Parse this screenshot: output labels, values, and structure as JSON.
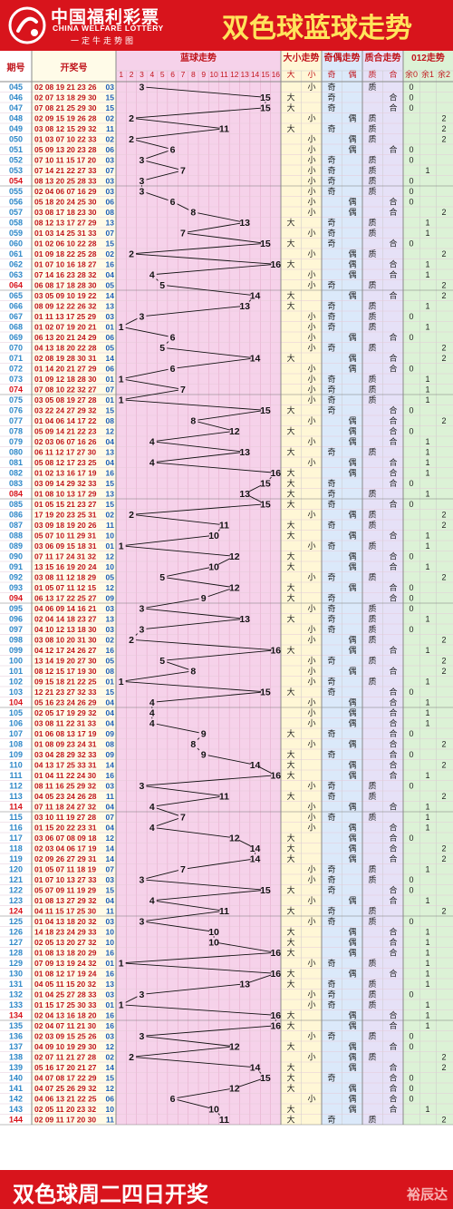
{
  "brand": {
    "name_cn": "中国福利彩票",
    "name_en": "CHINA WELFARE LOTTERY",
    "slogan": "一定牛走势图"
  },
  "title": "双色球蓝球走势",
  "headers": {
    "period": "期号",
    "draw": "开奖号",
    "blue_trend": "蓝球走势",
    "size_trend": "大小走势",
    "parity_trend": "奇偶走势",
    "prime_trend": "质合走势",
    "mod3_trend": "012走势",
    "big": "大",
    "small": "小",
    "odd": "奇",
    "even": "偶",
    "prime": "质",
    "composite": "合",
    "mod0": "余0",
    "mod1": "余1",
    "mod2": "余2",
    "numbers": [
      "1",
      "2",
      "3",
      "4",
      "5",
      "6",
      "7",
      "8",
      "9",
      "10",
      "11",
      "12",
      "13",
      "14",
      "15",
      "16"
    ]
  },
  "rows": [
    {
      "p": "045",
      "r": "02 08 19 21 23 26",
      "b": 3
    },
    {
      "p": "046",
      "r": "02 07 13 18 29 30",
      "b": 15
    },
    {
      "p": "047",
      "r": "07 08 21 25 29 30",
      "b": 15
    },
    {
      "p": "048",
      "r": "02 09 15 19 26 28",
      "b": 2
    },
    {
      "p": "049",
      "r": "03 08 12 15 29 32",
      "b": 11
    },
    {
      "p": "050",
      "r": "01 03 07 10 22 33",
      "b": 2
    },
    {
      "p": "051",
      "r": "05 09 13 20 23 28",
      "b": 6
    },
    {
      "p": "052",
      "r": "07 10 11 15 17 20",
      "b": 3
    },
    {
      "p": "053",
      "r": "07 14 21 22 27 33",
      "b": 7
    },
    {
      "p": "054",
      "r": "08 13 20 25 28 33",
      "b": 3
    },
    {
      "p": "055",
      "r": "02 04 06 07 16 29",
      "b": 3
    },
    {
      "p": "056",
      "r": "05 18 20 24 25 30",
      "b": 6
    },
    {
      "p": "057",
      "r": "03 08 17 18 23 30",
      "b": 8
    },
    {
      "p": "058",
      "r": "08 12 13 17 27 29",
      "b": 13
    },
    {
      "p": "059",
      "r": "01 03 14 25 31 33",
      "b": 7
    },
    {
      "p": "060",
      "r": "01 02 06 10 22 28",
      "b": 15
    },
    {
      "p": "061",
      "r": "01 09 18 22 25 28",
      "b": 2
    },
    {
      "p": "062",
      "r": "01 07 10 16 18 27",
      "b": 16
    },
    {
      "p": "063",
      "r": "07 14 16 23 28 32",
      "b": 4
    },
    {
      "p": "064",
      "r": "06 08 17 18 28 30",
      "b": 5
    },
    {
      "p": "065",
      "r": "03 05 09 10 19 22",
      "b": 14
    },
    {
      "p": "066",
      "r": "08 09 12 22 26 32",
      "b": 13
    },
    {
      "p": "067",
      "r": "01 11 13 17 25 29",
      "b": 3
    },
    {
      "p": "068",
      "r": "01 02 07 19 20 21",
      "b": 1
    },
    {
      "p": "069",
      "r": "06 13 20 21 24 29",
      "b": 6
    },
    {
      "p": "070",
      "r": "04 13 18 20 22 28",
      "b": 5
    },
    {
      "p": "071",
      "r": "02 08 19 28 30 31",
      "b": 14
    },
    {
      "p": "072",
      "r": "01 14 20 21 27 29",
      "b": 6
    },
    {
      "p": "073",
      "r": "01 09 12 18 28 30",
      "b": 1
    },
    {
      "p": "074",
      "r": "07 08 10 22 32 27",
      "b": 7
    },
    {
      "p": "075",
      "r": "03 05 08 19 27 28",
      "b": 1
    },
    {
      "p": "076",
      "r": "03 22 24 27 29 32",
      "b": 15
    },
    {
      "p": "077",
      "r": "01 04 06 14 17 22",
      "b": 8
    },
    {
      "p": "078",
      "r": "05 09 14 21 22 23",
      "b": 12
    },
    {
      "p": "079",
      "r": "02 03 06 07 16 26",
      "b": 4
    },
    {
      "p": "080",
      "r": "06 11 12 17 27 30",
      "b": 13
    },
    {
      "p": "081",
      "r": "05 08 12 17 23 25",
      "b": 4
    },
    {
      "p": "082",
      "r": "01 02 13 16 17 19",
      "b": 16
    },
    {
      "p": "083",
      "r": "03 09 14 29 32 33",
      "b": 15
    },
    {
      "p": "084",
      "r": "01 08 10 13 17 29",
      "b": 13
    },
    {
      "p": "085",
      "r": "01 05 15 21 23 27",
      "b": 15
    },
    {
      "p": "086",
      "r": "17 19 20 23 25 31",
      "b": 2
    },
    {
      "p": "087",
      "r": "03 09 18 19 20 26",
      "b": 11
    },
    {
      "p": "088",
      "r": "05 07 10 11 29 31",
      "b": 10
    },
    {
      "p": "089",
      "r": "03 06 09 15 18 31",
      "b": 1
    },
    {
      "p": "090",
      "r": "07 11 17 24 31 32",
      "b": 12
    },
    {
      "p": "091",
      "r": "13 15 16 19 20 24",
      "b": 10
    },
    {
      "p": "092",
      "r": "03 08 11 12 18 29",
      "b": 5
    },
    {
      "p": "093",
      "r": "01 05 07 11 12 15",
      "b": 12
    },
    {
      "p": "094",
      "r": "06 13 17 22 25 27",
      "b": 9
    },
    {
      "p": "095",
      "r": "04 06 09 14 16 21",
      "b": 3
    },
    {
      "p": "096",
      "r": "02 04 14 18 23 27",
      "b": 13
    },
    {
      "p": "097",
      "r": "04 10 12 13 18 30",
      "b": 3
    },
    {
      "p": "098",
      "r": "03 08 10 20 31 30",
      "b": 2
    },
    {
      "p": "099",
      "r": "04 12 17 24 26 27",
      "b": 16
    },
    {
      "p": "100",
      "r": "13 14 19 20 27 30",
      "b": 5
    },
    {
      "p": "101",
      "r": "08 12 15 17 19 30",
      "b": 8
    },
    {
      "p": "102",
      "r": "09 15 18 21 22 25",
      "b": 1
    },
    {
      "p": "103",
      "r": "12 21 23 27 32 33",
      "b": 15
    },
    {
      "p": "104",
      "r": "05 16 23 24 26 29",
      "b": 4
    },
    {
      "p": "105",
      "r": "02 05 17 19 29 32",
      "b": 4
    },
    {
      "p": "106",
      "r": "03 08 11 22 31 33",
      "b": 4
    },
    {
      "p": "107",
      "r": "01 06 08 13 17 19",
      "b": 9
    },
    {
      "p": "108",
      "r": "01 08 09 23 24 31",
      "b": 8
    },
    {
      "p": "109",
      "r": "03 04 28 29 32 33",
      "b": 9
    },
    {
      "p": "110",
      "r": "04 13 17 25 33 31",
      "b": 14
    },
    {
      "p": "111",
      "r": "01 04 11 22 24 30",
      "b": 16
    },
    {
      "p": "112",
      "r": "08 11 16 25 29 32",
      "b": 3
    },
    {
      "p": "113",
      "r": "04 05 23 24 26 28",
      "b": 11
    },
    {
      "p": "114",
      "r": "07 11 18 24 27 32",
      "b": 4
    },
    {
      "p": "115",
      "r": "03 10 11 19 27 28",
      "b": 7
    },
    {
      "p": "116",
      "r": "01 15 20 22 23 31",
      "b": 4
    },
    {
      "p": "117",
      "r": "03 06 07 08 09 18",
      "b": 12
    },
    {
      "p": "118",
      "r": "02 03 04 06 17 19",
      "b": 14
    },
    {
      "p": "119",
      "r": "02 09 26 27 29 31",
      "b": 14
    },
    {
      "p": "120",
      "r": "01 05 07 11 18 19",
      "b": 7
    },
    {
      "p": "121",
      "r": "01 07 10 13 27 33",
      "b": 3
    },
    {
      "p": "122",
      "r": "05 07 09 11 19 29",
      "b": 15
    },
    {
      "p": "123",
      "r": "01 08 13 27 29 32",
      "b": 4
    },
    {
      "p": "124",
      "r": "04 11 15 17 25 30",
      "b": 11
    },
    {
      "p": "125",
      "r": "01 04 13 18 20 32",
      "b": 3
    },
    {
      "p": "126",
      "r": "14 18 23 24 29 33",
      "b": 10
    },
    {
      "p": "127",
      "r": "02 05 13 20 27 32",
      "b": 10
    },
    {
      "p": "128",
      "r": "01 08 13 18 20 29",
      "b": 16
    },
    {
      "p": "129",
      "r": "07 09 13 19 24 32",
      "b": 1
    },
    {
      "p": "130",
      "r": "01 08 12 17 19 24",
      "b": 16
    },
    {
      "p": "131",
      "r": "04 05 11 15 20 32",
      "b": 13
    },
    {
      "p": "132",
      "r": "01 04 25 27 28 33",
      "b": 3
    },
    {
      "p": "133",
      "r": "01 15 17 25 30 33",
      "b": 1
    },
    {
      "p": "134",
      "r": "02 04 13 16 18 20",
      "b": 16
    },
    {
      "p": "135",
      "r": "02 04 07 11 21 30",
      "b": 16
    },
    {
      "p": "136",
      "r": "02 03 09 15 25 26",
      "b": 3
    },
    {
      "p": "137",
      "r": "04 09 10 19 29 30",
      "b": 12
    },
    {
      "p": "138",
      "r": "02 07 11 21 27 28",
      "b": 2
    },
    {
      "p": "139",
      "r": "05 16 17 20 21 27",
      "b": 14
    },
    {
      "p": "140",
      "r": "04 07 08 17 22 29",
      "b": 15
    },
    {
      "p": "141",
      "r": "04 07 25 26 29 32",
      "b": 12
    },
    {
      "p": "142",
      "r": "04 06 13 21 22 25",
      "b": 6
    },
    {
      "p": "143",
      "r": "02 05 11 20 23 32",
      "b": 10
    },
    {
      "p": "144",
      "r": "02 09 11 17 20 30",
      "b": 11
    }
  ],
  "colors": {
    "brand_red": "#d8141c",
    "title_yellow": "#ffe45c",
    "line_black": "#111111",
    "period_blue": "#2f87c8",
    "period_red": "#d8141c",
    "blue_zone": "#f6d2ea",
    "size_zone": "#fff7d6",
    "parity_zone": "#dbe9fa",
    "prime_zone": "#e6e1f7",
    "mod_zone": "#dcf2d6"
  },
  "footer": {
    "text": "双色球周二四日开奖",
    "watermark": "裕辰达"
  }
}
